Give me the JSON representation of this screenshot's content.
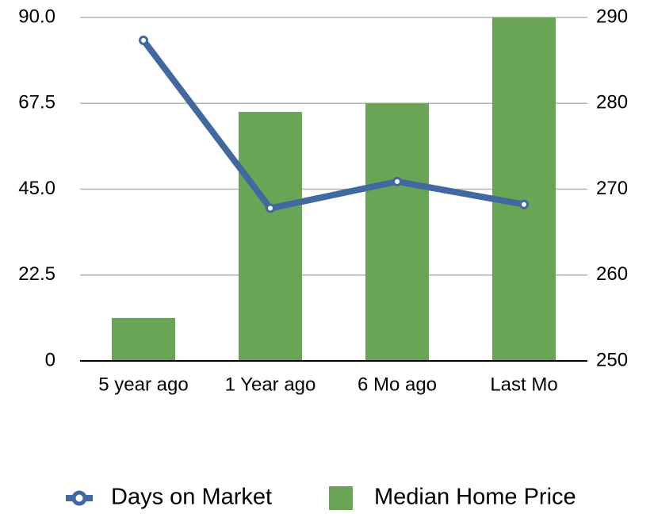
{
  "chart_data": {
    "type": "combo",
    "categories": [
      "5 year ago",
      "1 Year ago",
      "6 Mo ago",
      "Last Mo"
    ],
    "series": [
      {
        "name": "Days on Market",
        "type": "line",
        "color": "#41689f",
        "values": [
          84,
          40,
          47,
          41
        ]
      },
      {
        "name": "Median Home Price",
        "type": "bar",
        "axis": "y2",
        "color": "#6aa556",
        "values": [
          255,
          279,
          280,
          290
        ]
      }
    ],
    "ylim": [
      0,
      90
    ],
    "yticks": [
      0,
      22.5,
      {
        "value": 45,
        "label": "45.0"
      },
      67.5,
      {
        "value": 90,
        "label": "90.0"
      }
    ],
    "y2lim": [
      250,
      290
    ],
    "y2ticks": [
      250,
      260,
      270,
      280,
      290
    ],
    "grid": true,
    "legend": "bottom"
  }
}
